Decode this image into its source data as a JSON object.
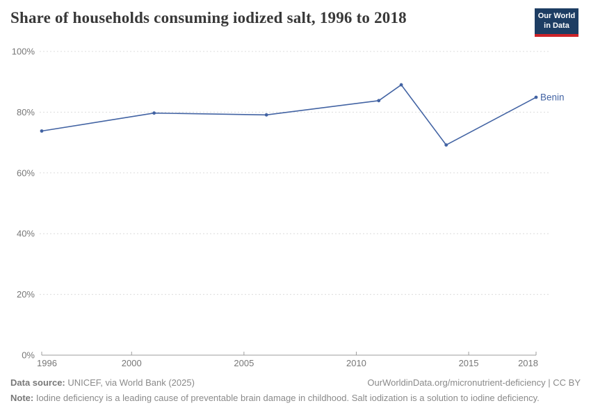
{
  "header": {
    "title": "Share of households consuming iodized salt, 1996 to 2018",
    "logo": {
      "line1": "Our World",
      "line2": "in Data"
    }
  },
  "chart_data": {
    "type": "line",
    "title": "Share of households consuming iodized salt, 1996 to 2018",
    "xlabel": "",
    "ylabel": "",
    "xlim": [
      1996,
      2018
    ],
    "ylim": [
      0,
      100
    ],
    "xticks": [
      1996,
      2000,
      2005,
      2010,
      2015,
      2018
    ],
    "yticks": [
      0,
      20,
      40,
      60,
      80,
      100
    ],
    "ytick_suffix": "%",
    "grid": "horizontal-dashed",
    "legend_position": "end-of-line-label",
    "series": [
      {
        "name": "Benin",
        "color": "#4263a3",
        "x": [
          1996,
          2001,
          2006,
          2011,
          2012,
          2014,
          2018
        ],
        "values": [
          73.8,
          79.7,
          79.1,
          83.8,
          89,
          69.2,
          84.9
        ]
      }
    ]
  },
  "colors": {
    "line": "#4263a3",
    "gridline": "#dcdcdc",
    "axis": "#9e9e9e",
    "tick_label": "#777777",
    "title": "#383838",
    "footer_text": "#8a8a8a",
    "logo_bg": "#1d3d63",
    "logo_bar": "#cd2328"
  },
  "footer": {
    "data_source_label": "Data source:",
    "data_source": " UNICEF, via World Bank (2025)",
    "link": "OurWorldinData.org/micronutrient-deficiency",
    "separator": " | ",
    "license": "CC BY",
    "note_label": "Note:",
    "note": " Iodine deficiency is a leading cause of preventable brain damage in childhood. Salt iodization is a solution to iodine deficiency."
  }
}
